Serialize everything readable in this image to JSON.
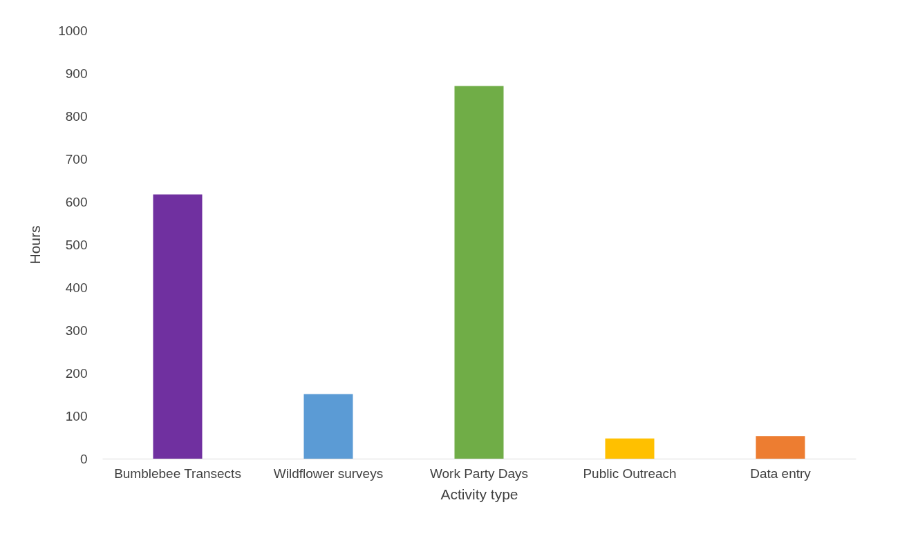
{
  "chart_data": {
    "type": "bar",
    "xlabel": "Activity type",
    "ylabel": "Hours",
    "categories": [
      "Bumblebee Transects",
      "Wildflower surveys",
      "Work Party Days",
      "Public Outreach",
      "Data entry"
    ],
    "values": [
      617,
      151,
      870,
      47,
      53
    ],
    "colors": [
      "#7030a0",
      "#5b9bd5",
      "#70ad47",
      "#ffc000",
      "#ed7d31"
    ],
    "ylim": [
      0,
      1000
    ],
    "yticks": [
      0,
      100,
      200,
      300,
      400,
      500,
      600,
      700,
      800,
      900,
      1000
    ],
    "grid": false,
    "legend": false
  }
}
